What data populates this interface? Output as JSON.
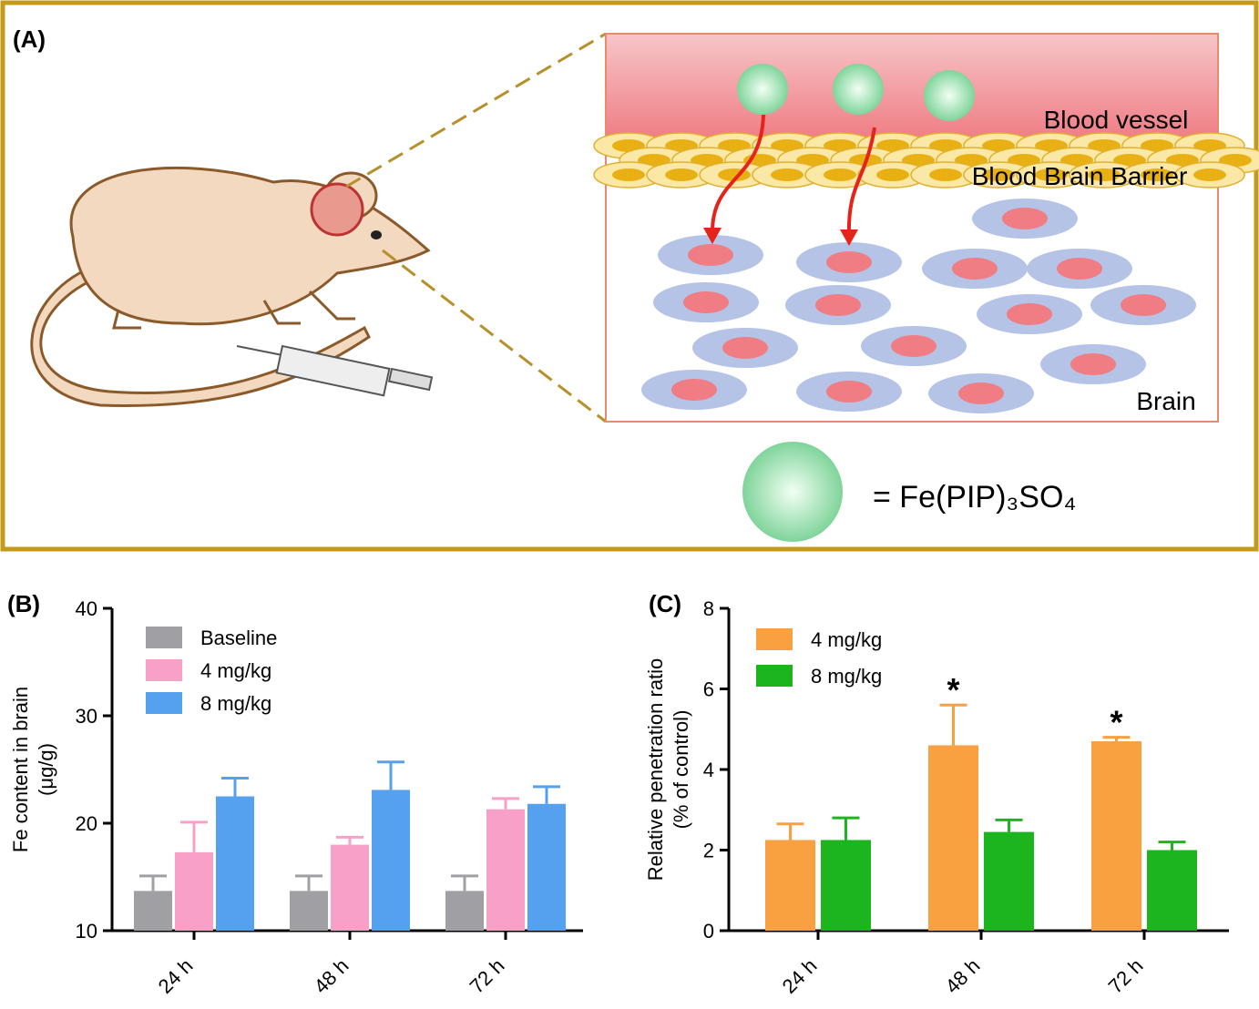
{
  "diagram": {
    "panel_label": "(A)",
    "labels": [
      "Blood vessel",
      "Blood Brain Barrier",
      "Brain"
    ],
    "legend": "= Fe(PIP)₃SO₄"
  },
  "chart_data": [
    {
      "type": "bar",
      "panel_label": "(B)",
      "y_label": [
        "Fe content in brain",
        "(μg/g)"
      ],
      "categories": [
        "24 h",
        "48 h",
        "72 h"
      ],
      "ylim": [
        10,
        40
      ],
      "yticks": [
        10,
        20,
        30,
        40
      ],
      "legend": "upper left",
      "series": [
        {
          "name": "Baseline",
          "color": "#a0a0a4",
          "values": [
            13.7,
            13.7,
            13.7
          ],
          "errors": [
            1.4,
            1.4,
            1.4
          ]
        },
        {
          "name": "4 mg/kg",
          "color": "#f7a1c9",
          "values": [
            17.3,
            18.0,
            21.3
          ],
          "errors": [
            2.8,
            0.7,
            1.0
          ]
        },
        {
          "name": "8 mg/kg",
          "color": "#56a0f0",
          "values": [
            22.5,
            23.1,
            21.8
          ],
          "errors": [
            1.7,
            2.6,
            1.6
          ]
        }
      ]
    },
    {
      "type": "bar",
      "panel_label": "(C)",
      "y_label": [
        "Relative penetration ratio",
        "(% of control)"
      ],
      "categories": [
        "24 h",
        "48 h",
        "72 h"
      ],
      "ylim": [
        0,
        8
      ],
      "yticks": [
        0,
        2,
        4,
        6,
        8
      ],
      "legend": "upper left",
      "annotations": [
        "*",
        "*"
      ],
      "series": [
        {
          "name": "4 mg/kg",
          "color": "#f9a040",
          "values": [
            2.25,
            4.6,
            4.7
          ],
          "errors": [
            0.4,
            1.0,
            0.1
          ]
        },
        {
          "name": "8 mg/kg",
          "color": "#1db51d",
          "values": [
            2.25,
            2.45,
            2.0
          ],
          "errors": [
            0.55,
            0.3,
            0.2
          ]
        }
      ]
    }
  ]
}
